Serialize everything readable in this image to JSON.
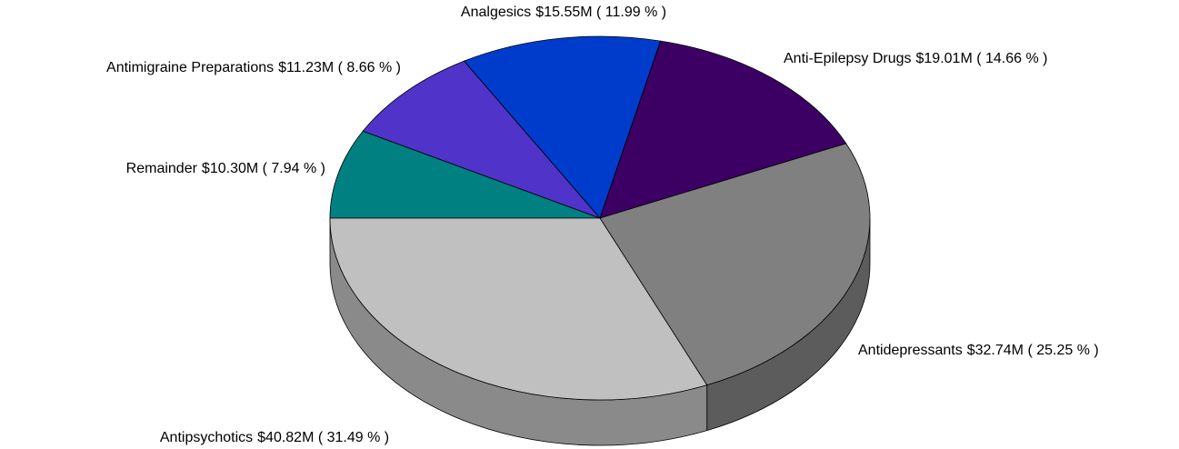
{
  "chart_data": {
    "type": "pie",
    "categories": [
      "Remainder",
      "Antimigraine Preparations",
      "Analgesics",
      "Anti-Epilepsy Drugs",
      "Antidepressants",
      "Antipsychotics"
    ],
    "values": [
      10.3,
      11.23,
      15.55,
      19.01,
      32.74,
      40.82
    ],
    "value_labels": [
      "$10.30M ( 7.94 % )",
      "$11.23M ( 8.66 % )",
      "$15.55M ( 11.99 % )",
      "$19.01M ( 14.66 % )",
      "$32.74M ( 25.25 % )",
      "$40.82M ( 31.49 % )"
    ],
    "colors": [
      "#008080",
      "#5033c8",
      "#003ccc",
      "#3c0064",
      "#808080",
      "#c0c0c0"
    ],
    "start_angle": 180
  }
}
